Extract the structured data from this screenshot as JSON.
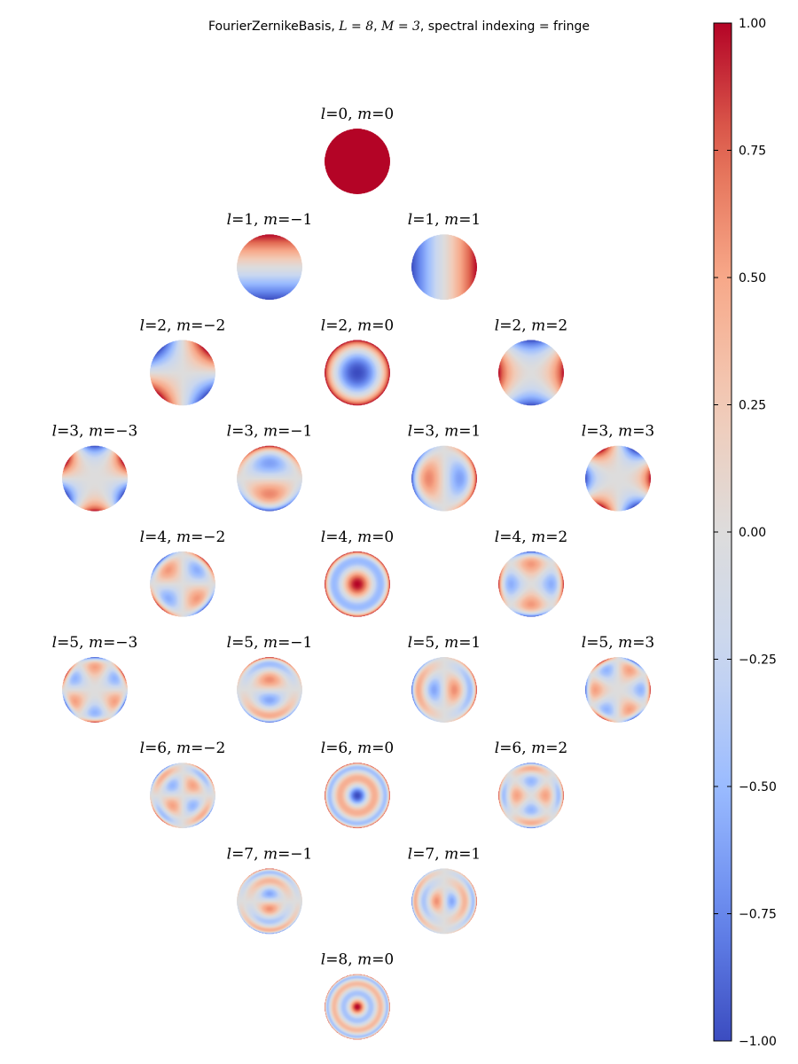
{
  "title": {
    "text_prefix": "FourierZernikeBasis, ",
    "L_part": "L = 8",
    "sep1": ", ",
    "M_part": "M = 3",
    "suffix": ", spectral indexing = fringe"
  },
  "chart_data": {
    "type": "heatmap",
    "title": "FourierZernikeBasis, L = 8, M = 3, spectral indexing = fringe",
    "colormap": "coolwarm",
    "colormap_stops": [
      "#3b4cc0",
      "#6788ee",
      "#9abbff",
      "#c9d7f0",
      "#dddcdc",
      "#f2cbb7",
      "#f7a889",
      "#e26952",
      "#b40426"
    ],
    "value_range": [
      -1.0,
      1.0
    ],
    "colorbar": {
      "ticks": [
        1.0,
        0.75,
        0.5,
        0.25,
        0.0,
        -0.25,
        -0.5,
        -0.75,
        -1.0
      ],
      "tick_labels": [
        "1.00",
        "0.75",
        "0.50",
        "0.25",
        "0.00",
        "−0.25",
        "−0.50",
        "−0.75",
        "−1.00"
      ]
    },
    "rows": [
      {
        "l": 0,
        "modes": [
          0
        ]
      },
      {
        "l": 1,
        "modes": [
          -1,
          1
        ]
      },
      {
        "l": 2,
        "modes": [
          -2,
          0,
          2
        ]
      },
      {
        "l": 3,
        "modes": [
          -3,
          -1,
          1,
          3
        ]
      },
      {
        "l": 4,
        "modes": [
          -2,
          0,
          2
        ]
      },
      {
        "l": 5,
        "modes": [
          -3,
          -1,
          1,
          3
        ]
      },
      {
        "l": 6,
        "modes": [
          -2,
          0,
          2
        ]
      },
      {
        "l": 7,
        "modes": [
          -1,
          1
        ]
      },
      {
        "l": 8,
        "modes": [
          0
        ]
      }
    ],
    "panel_labels": [
      "l=0, m=0",
      "l=1, m=−1",
      "l=1, m=1",
      "l=2, m=−2",
      "l=2, m=0",
      "l=2, m=2",
      "l=3, m=−3",
      "l=3, m=−1",
      "l=3, m=1",
      "l=3, m=3",
      "l=4, m=−2",
      "l=4, m=0",
      "l=4, m=2",
      "l=5, m=−3",
      "l=5, m=−1",
      "l=5, m=1",
      "l=5, m=3",
      "l=6, m=−2",
      "l=6, m=0",
      "l=6, m=2",
      "l=7, m=−1",
      "l=7, m=1",
      "l=8, m=0"
    ]
  }
}
